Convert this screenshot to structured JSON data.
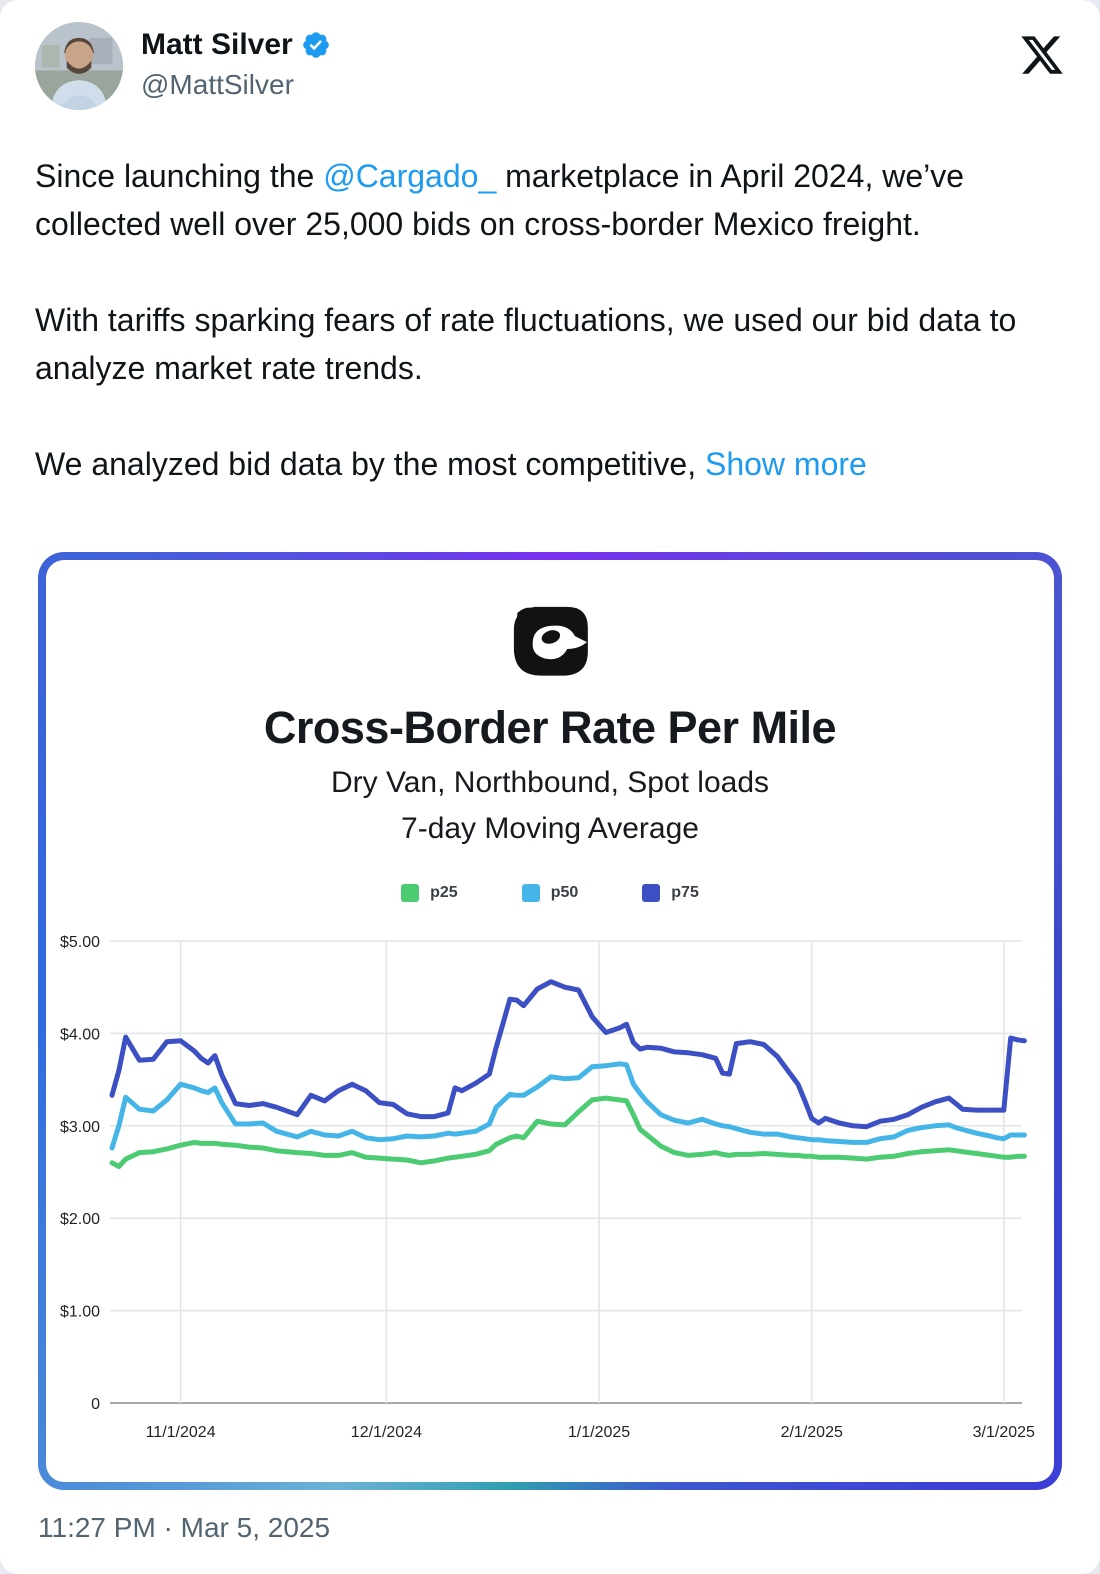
{
  "tweet": {
    "author_name": "Matt Silver",
    "author_handle": "@MattSilver",
    "verified": true,
    "timestamp": "11:27 PM · Mar 5, 2025",
    "body": [
      {
        "segments": [
          {
            "text": "Since launching the "
          },
          {
            "text": "@Cargado_",
            "link": true
          },
          {
            "text": " marketplace in April 2024, we’ve collected well over 25,000 bids on cross-border Mexico freight."
          }
        ]
      },
      {
        "segments": [
          {
            "text": "With tariffs sparking fears of rate fluctuations, we used our bid data to analyze market rate trends."
          }
        ]
      },
      {
        "segments": [
          {
            "text": "We analyzed bid data by the most competitive, "
          },
          {
            "text": "Show more",
            "link": true
          }
        ]
      }
    ]
  },
  "chart_card": {
    "title": "Cross-Border Rate Per Mile",
    "subtitle1": "Dry Van, Northbound, Spot loads",
    "subtitle2": "7-day Moving Average"
  },
  "colors": {
    "link": "#1d9bf0",
    "verified_badge": "#1d9bf0",
    "text": "#0f1419",
    "muted": "#536471",
    "grid": "#e3e4e8",
    "axis": "#a6aab0",
    "tick_text": "#1f2328",
    "p25": "#4ccb72",
    "p50": "#45b5e8",
    "p75": "#3c50c4"
  },
  "chart_data": {
    "type": "line",
    "title": "Cross-Border Rate Per Mile",
    "subtitle": [
      "Dry Van, Northbound, Spot loads",
      "7-day Moving Average"
    ],
    "legend_position": "top",
    "grid": true,
    "ylim": [
      0,
      5
    ],
    "y_ticks": [
      {
        "value": 5,
        "label": "$5.00"
      },
      {
        "value": 4,
        "label": "$4.00"
      },
      {
        "value": 3,
        "label": "$3.00"
      },
      {
        "value": 2,
        "label": "$2.00"
      },
      {
        "value": 1,
        "label": "$1.00"
      },
      {
        "value": 0,
        "label": "0"
      }
    ],
    "x_ticks": [
      {
        "date": "2024-11-01",
        "label": "11/1/2024"
      },
      {
        "date": "2024-12-01",
        "label": "12/1/2024"
      },
      {
        "date": "2025-01-01",
        "label": "1/1/2025"
      },
      {
        "date": "2025-02-01",
        "label": "2/1/2025"
      },
      {
        "date": "2025-03-01",
        "label": "3/1/2025"
      }
    ],
    "x": [
      "2024-10-22",
      "2024-10-23",
      "2024-10-24",
      "2024-10-26",
      "2024-10-28",
      "2024-10-30",
      "2024-11-01",
      "2024-11-03",
      "2024-11-04",
      "2024-11-05",
      "2024-11-06",
      "2024-11-07",
      "2024-11-09",
      "2024-11-11",
      "2024-11-13",
      "2024-11-15",
      "2024-11-18",
      "2024-11-20",
      "2024-11-22",
      "2024-11-24",
      "2024-11-26",
      "2024-11-28",
      "2024-11-30",
      "2024-12-02",
      "2024-12-04",
      "2024-12-06",
      "2024-12-08",
      "2024-12-10",
      "2024-12-11",
      "2024-12-12",
      "2024-12-14",
      "2024-12-16",
      "2024-12-17",
      "2024-12-19",
      "2024-12-20",
      "2024-12-21",
      "2024-12-23",
      "2024-12-25",
      "2024-12-27",
      "2024-12-29",
      "2024-12-31",
      "2025-01-02",
      "2025-01-04",
      "2025-01-05",
      "2025-01-06",
      "2025-01-07",
      "2025-01-08",
      "2025-01-10",
      "2025-01-12",
      "2025-01-14",
      "2025-01-16",
      "2025-01-18",
      "2025-01-19",
      "2025-01-20",
      "2025-01-21",
      "2025-01-23",
      "2025-01-25",
      "2025-01-27",
      "2025-01-29",
      "2025-01-30",
      "2025-01-31",
      "2025-02-01",
      "2025-02-02",
      "2025-02-03",
      "2025-02-05",
      "2025-02-07",
      "2025-02-09",
      "2025-02-11",
      "2025-02-13",
      "2025-02-15",
      "2025-02-17",
      "2025-02-19",
      "2025-02-21",
      "2025-02-22",
      "2025-02-23",
      "2025-02-25",
      "2025-02-27",
      "2025-02-28",
      "2025-03-01",
      "2025-03-02",
      "2025-03-03",
      "2025-03-04"
    ],
    "series": [
      {
        "name": "p25",
        "color": "#4ccb72",
        "values": [
          2.6,
          2.56,
          2.64,
          2.71,
          2.72,
          2.75,
          2.79,
          2.82,
          2.81,
          2.81,
          2.81,
          2.8,
          2.79,
          2.77,
          2.76,
          2.73,
          2.71,
          2.7,
          2.68,
          2.68,
          2.71,
          2.66,
          2.65,
          2.64,
          2.63,
          2.6,
          2.62,
          2.65,
          2.66,
          2.67,
          2.69,
          2.73,
          2.8,
          2.87,
          2.89,
          2.87,
          3.05,
          3.02,
          3.01,
          3.15,
          3.28,
          3.3,
          3.28,
          3.27,
          3.12,
          2.96,
          2.9,
          2.78,
          2.71,
          2.68,
          2.69,
          2.71,
          2.69,
          2.68,
          2.69,
          2.69,
          2.7,
          2.69,
          2.68,
          2.68,
          2.67,
          2.67,
          2.66,
          2.66,
          2.66,
          2.65,
          2.64,
          2.66,
          2.67,
          2.7,
          2.72,
          2.73,
          2.74,
          2.73,
          2.72,
          2.7,
          2.68,
          2.67,
          2.66,
          2.66,
          2.67,
          2.67
        ]
      },
      {
        "name": "p50",
        "color": "#45b5e8",
        "values": [
          2.76,
          3.0,
          3.31,
          3.18,
          3.16,
          3.28,
          3.45,
          3.41,
          3.38,
          3.36,
          3.41,
          3.25,
          3.02,
          3.02,
          3.03,
          2.94,
          2.88,
          2.94,
          2.9,
          2.89,
          2.94,
          2.87,
          2.85,
          2.86,
          2.89,
          2.88,
          2.89,
          2.92,
          2.91,
          2.92,
          2.94,
          3.02,
          3.2,
          3.34,
          3.33,
          3.33,
          3.42,
          3.53,
          3.51,
          3.52,
          3.64,
          3.65,
          3.67,
          3.66,
          3.45,
          3.35,
          3.26,
          3.12,
          3.06,
          3.03,
          3.07,
          3.02,
          3.0,
          2.99,
          2.97,
          2.93,
          2.91,
          2.91,
          2.88,
          2.87,
          2.86,
          2.85,
          2.85,
          2.84,
          2.83,
          2.82,
          2.82,
          2.86,
          2.88,
          2.95,
          2.98,
          3.0,
          3.01,
          2.98,
          2.96,
          2.92,
          2.89,
          2.87,
          2.86,
          2.9,
          2.9,
          2.9
        ]
      },
      {
        "name": "p75",
        "color": "#3c50c4",
        "values": [
          3.33,
          3.6,
          3.96,
          3.71,
          3.72,
          3.91,
          3.92,
          3.81,
          3.73,
          3.68,
          3.76,
          3.55,
          3.24,
          3.22,
          3.24,
          3.2,
          3.12,
          3.33,
          3.27,
          3.38,
          3.45,
          3.38,
          3.25,
          3.23,
          3.13,
          3.1,
          3.1,
          3.14,
          3.41,
          3.38,
          3.46,
          3.56,
          3.85,
          4.37,
          4.36,
          4.3,
          4.48,
          4.56,
          4.5,
          4.47,
          4.18,
          4.01,
          4.06,
          4.1,
          3.9,
          3.83,
          3.85,
          3.84,
          3.8,
          3.79,
          3.77,
          3.73,
          3.57,
          3.56,
          3.89,
          3.91,
          3.88,
          3.75,
          3.55,
          3.45,
          3.27,
          3.08,
          3.03,
          3.08,
          3.03,
          3.0,
          2.99,
          3.05,
          3.07,
          3.12,
          3.2,
          3.26,
          3.3,
          3.24,
          3.18,
          3.17,
          3.17,
          3.17,
          3.17,
          3.95,
          3.93,
          3.92
        ]
      }
    ]
  }
}
